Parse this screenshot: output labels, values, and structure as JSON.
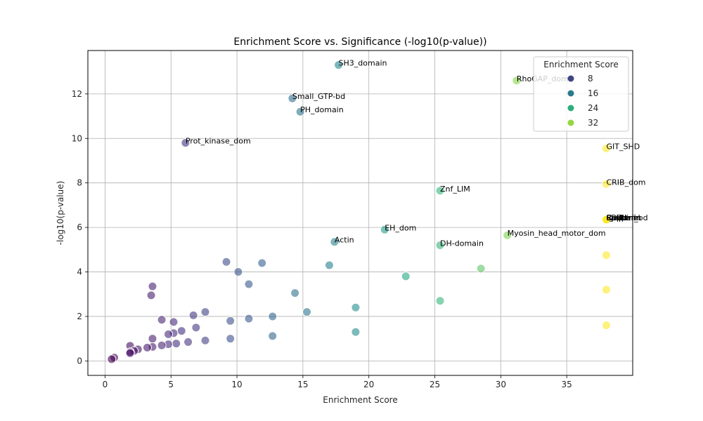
{
  "chart_data": {
    "type": "scatter",
    "title": "Enrichment Score vs. Significance (-log10(p-value))",
    "xlabel": "Enrichment Score",
    "ylabel": "-log10(p-value)",
    "xlim": [
      -1.3,
      40.0
    ],
    "ylim": [
      -0.65,
      13.95
    ],
    "xticks": [
      0,
      5,
      10,
      15,
      20,
      25,
      30,
      35
    ],
    "yticks": [
      0,
      2,
      4,
      6,
      8,
      10,
      12
    ],
    "grid": true,
    "legend": {
      "title": "Enrichment Score",
      "placement": "top-right",
      "entries": [
        {
          "label": "8",
          "value": 8
        },
        {
          "label": "16",
          "value": 16
        },
        {
          "label": "24",
          "value": 24
        },
        {
          "label": "32",
          "value": 32
        }
      ]
    },
    "colormap": "viridis",
    "color_range": [
      0.5,
      38.0
    ],
    "annotated_points": [
      {
        "label": "SH3_domain",
        "x": 17.7,
        "y": 13.3
      },
      {
        "label": "RhoGAP_dom",
        "x": 31.2,
        "y": 12.6
      },
      {
        "label": "Small_GTP-bd",
        "x": 14.2,
        "y": 11.8
      },
      {
        "label": "PH_domain",
        "x": 14.8,
        "y": 11.2
      },
      {
        "label": "Prot_kinase_dom",
        "x": 6.1,
        "y": 9.8
      },
      {
        "label": "GIT_SHD",
        "x": 38.0,
        "y": 9.55
      },
      {
        "label": "CRIB_dom",
        "x": 38.0,
        "y": 7.95
      },
      {
        "label": "Znf_LIM",
        "x": 25.4,
        "y": 7.65
      },
      {
        "label": "Cadherin",
        "x": 38.0,
        "y": 6.35
      },
      {
        "label": "Spectrin",
        "x": 38.0,
        "y": 6.35
      },
      {
        "label": "Paxillin",
        "x": 38.0,
        "y": 6.35
      },
      {
        "label": "PDZ",
        "x": 38.0,
        "y": 6.35
      },
      {
        "label": "Ig-like",
        "x": 38.0,
        "y": 6.35
      },
      {
        "label": "Calponin",
        "x": 38.0,
        "y": 6.35
      },
      {
        "label": "Copper_bd",
        "x": 38.0,
        "y": 6.35
      },
      {
        "label": "EH_dom",
        "x": 21.2,
        "y": 5.9
      },
      {
        "label": "Myosin_head_motor_dom",
        "x": 30.5,
        "y": 5.65
      },
      {
        "label": "Actin",
        "x": 17.4,
        "y": 5.35
      },
      {
        "label": "DH-domain",
        "x": 25.4,
        "y": 5.2
      }
    ],
    "points": [
      {
        "x": 17.7,
        "y": 13.3
      },
      {
        "x": 31.2,
        "y": 12.6
      },
      {
        "x": 14.2,
        "y": 11.8
      },
      {
        "x": 14.8,
        "y": 11.2
      },
      {
        "x": 6.1,
        "y": 9.8
      },
      {
        "x": 38.0,
        "y": 9.55
      },
      {
        "x": 38.0,
        "y": 7.95
      },
      {
        "x": 25.4,
        "y": 7.65
      },
      {
        "x": 38.0,
        "y": 6.35
      },
      {
        "x": 38.0,
        "y": 6.35
      },
      {
        "x": 38.0,
        "y": 6.35
      },
      {
        "x": 38.0,
        "y": 6.35
      },
      {
        "x": 38.0,
        "y": 6.35
      },
      {
        "x": 38.0,
        "y": 6.35
      },
      {
        "x": 38.0,
        "y": 6.35
      },
      {
        "x": 21.2,
        "y": 5.9
      },
      {
        "x": 30.5,
        "y": 5.65
      },
      {
        "x": 17.4,
        "y": 5.35
      },
      {
        "x": 25.4,
        "y": 5.2
      },
      {
        "x": 38.0,
        "y": 4.75
      },
      {
        "x": 9.2,
        "y": 4.45
      },
      {
        "x": 11.9,
        "y": 4.4
      },
      {
        "x": 17.0,
        "y": 4.3
      },
      {
        "x": 28.5,
        "y": 4.15
      },
      {
        "x": 10.1,
        "y": 4.0
      },
      {
        "x": 22.8,
        "y": 3.8
      },
      {
        "x": 10.9,
        "y": 3.45
      },
      {
        "x": 3.6,
        "y": 3.35
      },
      {
        "x": 38.0,
        "y": 3.2
      },
      {
        "x": 14.4,
        "y": 3.05
      },
      {
        "x": 3.5,
        "y": 2.95
      },
      {
        "x": 25.4,
        "y": 2.7
      },
      {
        "x": 19.0,
        "y": 2.4
      },
      {
        "x": 7.6,
        "y": 2.2
      },
      {
        "x": 15.3,
        "y": 2.2
      },
      {
        "x": 6.7,
        "y": 2.05
      },
      {
        "x": 12.7,
        "y": 2.0
      },
      {
        "x": 10.9,
        "y": 1.9
      },
      {
        "x": 4.3,
        "y": 1.85
      },
      {
        "x": 9.5,
        "y": 1.8
      },
      {
        "x": 5.2,
        "y": 1.75
      },
      {
        "x": 38.0,
        "y": 1.6
      },
      {
        "x": 6.9,
        "y": 1.5
      },
      {
        "x": 5.8,
        "y": 1.35
      },
      {
        "x": 19.0,
        "y": 1.3
      },
      {
        "x": 5.2,
        "y": 1.25
      },
      {
        "x": 4.8,
        "y": 1.2
      },
      {
        "x": 12.7,
        "y": 1.12
      },
      {
        "x": 9.5,
        "y": 1.0
      },
      {
        "x": 3.6,
        "y": 1.0
      },
      {
        "x": 7.6,
        "y": 0.92
      },
      {
        "x": 6.3,
        "y": 0.85
      },
      {
        "x": 5.4,
        "y": 0.78
      },
      {
        "x": 4.8,
        "y": 0.75
      },
      {
        "x": 4.3,
        "y": 0.7
      },
      {
        "x": 1.9,
        "y": 0.68
      },
      {
        "x": 3.6,
        "y": 0.63
      },
      {
        "x": 3.2,
        "y": 0.6
      },
      {
        "x": 2.5,
        "y": 0.52
      },
      {
        "x": 2.2,
        "y": 0.45
      },
      {
        "x": 1.9,
        "y": 0.4
      },
      {
        "x": 1.9,
        "y": 0.35
      },
      {
        "x": 0.7,
        "y": 0.15
      },
      {
        "x": 0.5,
        "y": 0.08
      }
    ]
  }
}
